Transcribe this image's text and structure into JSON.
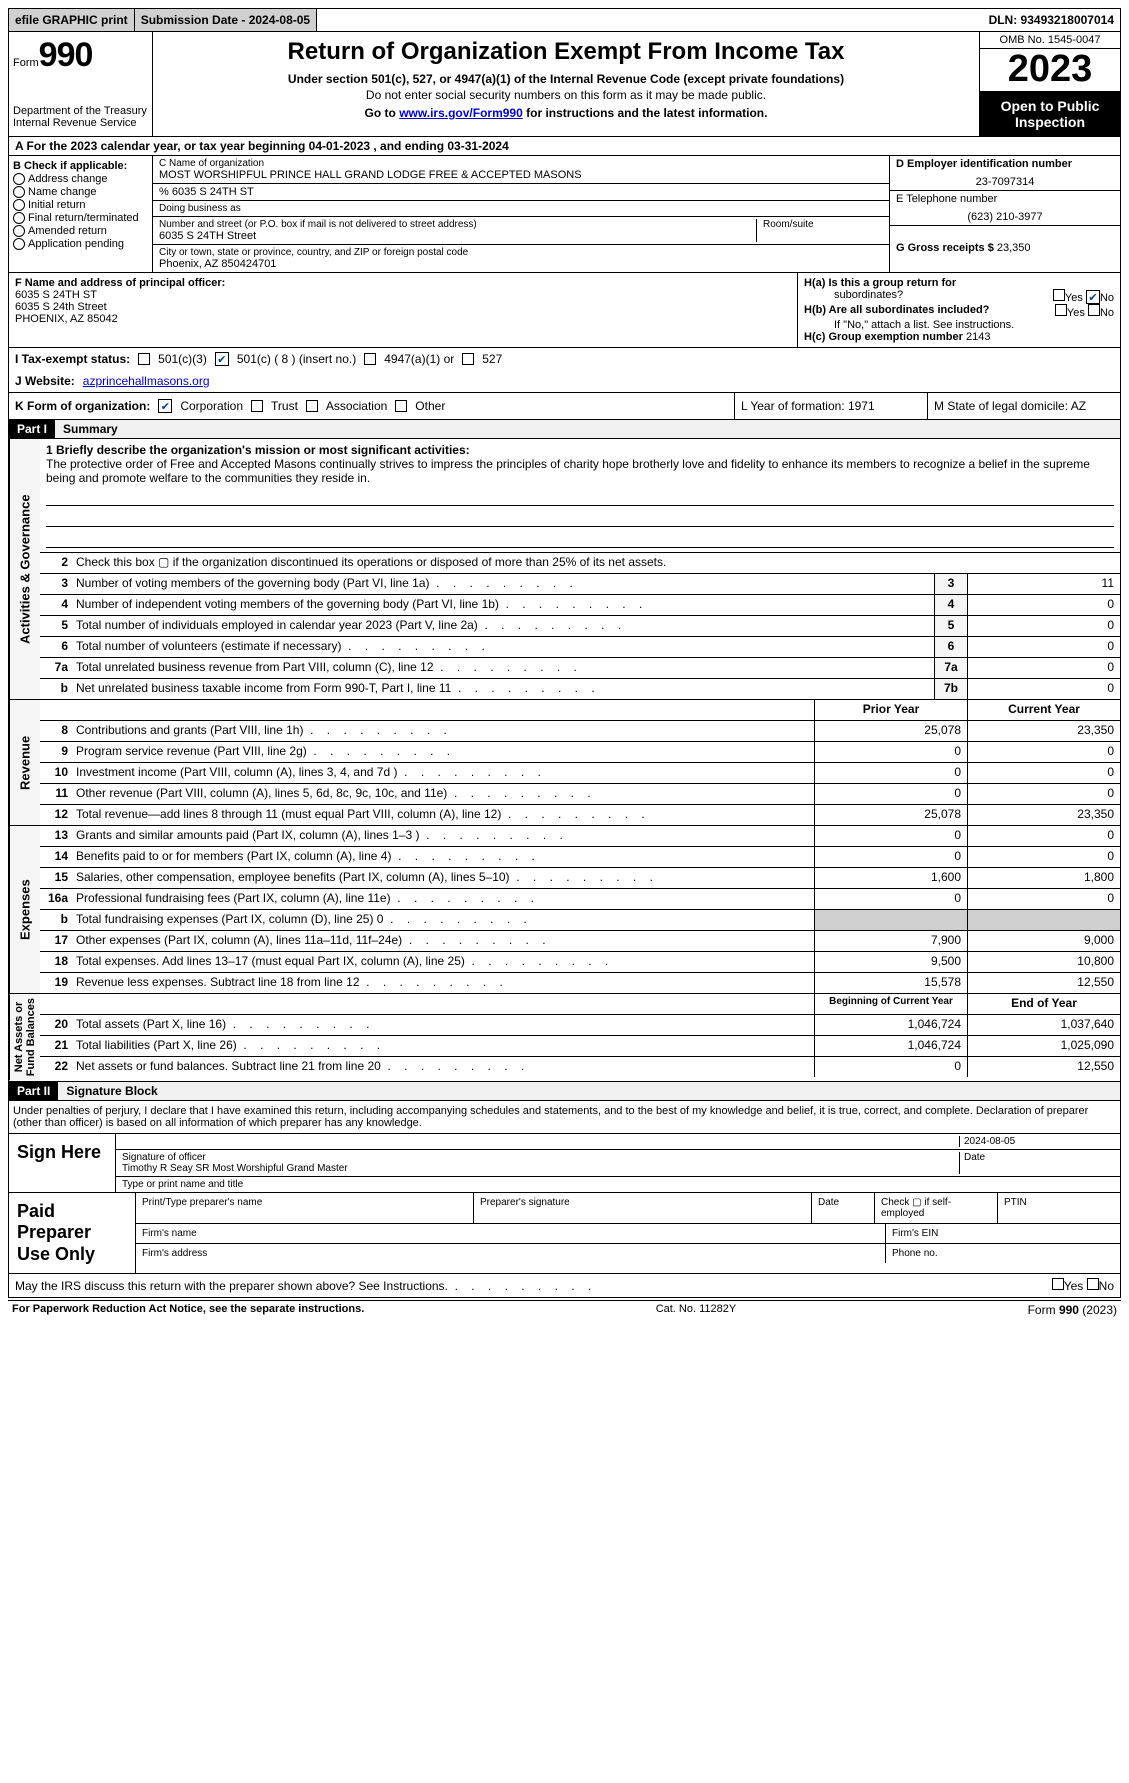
{
  "topbar": {
    "efile": "efile GRAPHIC print",
    "sub_label": "Submission Date - 2024-08-05",
    "dln": "DLN: 93493218007014"
  },
  "header": {
    "form_label": "Form",
    "form_num": "990",
    "dept": "Department of the Treasury\nInternal Revenue Service",
    "title": "Return of Organization Exempt From Income Tax",
    "subtitle": "Under section 501(c), 527, or 4947(a)(1) of the Internal Revenue Code (except private foundations)",
    "sub2": "Do not enter social security numbers on this form as it may be made public.",
    "sub3_pre": "Go to ",
    "sub3_link": "www.irs.gov/Form990",
    "sub3_post": " for instructions and the latest information.",
    "omb": "OMB No. 1545-0047",
    "year": "2023",
    "open": "Open to Public Inspection"
  },
  "line_a": "A For the 2023 calendar year, or tax year beginning 04-01-2023    , and ending 03-31-2024",
  "box_b": {
    "label": "B Check if applicable:",
    "opts": [
      "Address change",
      "Name change",
      "Initial return",
      "Final return/terminated",
      "Amended return",
      "Application pending"
    ]
  },
  "box_c": {
    "name_label": "C Name of organization",
    "name": "MOST WORSHIPFUL PRINCE HALL GRAND LODGE FREE & ACCEPTED MASONS",
    "care": "% 6035 S 24TH ST",
    "dba_label": "Doing business as",
    "addr_label": "Number and street (or P.O. box if mail is not delivered to street address)",
    "addr": "6035 S 24TH Street",
    "room_label": "Room/suite",
    "city_label": "City or town, state or province, country, and ZIP or foreign postal code",
    "city": "Phoenix, AZ  850424701"
  },
  "box_d": {
    "ein_label": "D Employer identification number",
    "ein": "23-7097314",
    "tel_label": "E Telephone number",
    "tel": "(623) 210-3977",
    "gross_label": "G Gross receipts $",
    "gross": "23,350"
  },
  "box_f": {
    "label": "F  Name and address of principal officer:",
    "l1": "6035 S 24TH ST",
    "l2": "6035 S 24th Street",
    "l3": "PHOENIX, AZ  85042"
  },
  "box_h": {
    "a": "H(a)  Is this a group return for",
    "a2": "subordinates?",
    "b": "H(b)  Are all subordinates included?",
    "b2": "If \"No,\" attach a list. See instructions.",
    "c": "H(c)  Group exemption number ",
    "c_val": "2143",
    "yes": "Yes",
    "no": "No"
  },
  "row_i": {
    "label": "I    Tax-exempt status:",
    "o1": "501(c)(3)",
    "o2": "501(c) ( 8 ) (insert no.)",
    "o3": "4947(a)(1) or",
    "o4": "527"
  },
  "row_j": {
    "label": "J   Website:",
    "val": "azprincehallmasons.org"
  },
  "row_k": {
    "label": "K Form of organization:",
    "o1": "Corporation",
    "o2": "Trust",
    "o3": "Association",
    "o4": "Other"
  },
  "row_lm": {
    "l": "L Year of formation: 1971",
    "m": "M State of legal domicile: AZ"
  },
  "part1": {
    "hdr": "Part I",
    "title": "Summary"
  },
  "mission": {
    "label": "1   Briefly describe the organization's mission or most significant activities:",
    "text": "The protective order of Free and Accepted Masons continually strives to impress the principles of charity hope brotherly love and fidelity to enhance its members to recognize a belief in the supreme being and promote welfare to the communities they reside in."
  },
  "gov_lines": [
    {
      "n": "2",
      "t": "Check this box ▢ if the organization discontinued its operations or disposed of more than 25% of its net assets.",
      "box": "",
      "v": ""
    },
    {
      "n": "3",
      "t": "Number of voting members of the governing body (Part VI, line 1a)",
      "box": "3",
      "v": "11"
    },
    {
      "n": "4",
      "t": "Number of independent voting members of the governing body (Part VI, line 1b)",
      "box": "4",
      "v": "0"
    },
    {
      "n": "5",
      "t": "Total number of individuals employed in calendar year 2023 (Part V, line 2a)",
      "box": "5",
      "v": "0"
    },
    {
      "n": "6",
      "t": "Total number of volunteers (estimate if necessary)",
      "box": "6",
      "v": "0"
    },
    {
      "n": "7a",
      "t": "Total unrelated business revenue from Part VIII, column (C), line 12",
      "box": "7a",
      "v": "0"
    },
    {
      "n": "b",
      "t": "Net unrelated business taxable income from Form 990-T, Part I, line 11",
      "box": "7b",
      "v": "0"
    }
  ],
  "rev_hdr": {
    "prior": "Prior Year",
    "curr": "Current Year"
  },
  "rev_lines": [
    {
      "n": "8",
      "t": "Contributions and grants (Part VIII, line 1h)",
      "p": "25,078",
      "c": "23,350"
    },
    {
      "n": "9",
      "t": "Program service revenue (Part VIII, line 2g)",
      "p": "0",
      "c": "0"
    },
    {
      "n": "10",
      "t": "Investment income (Part VIII, column (A), lines 3, 4, and 7d )",
      "p": "0",
      "c": "0"
    },
    {
      "n": "11",
      "t": "Other revenue (Part VIII, column (A), lines 5, 6d, 8c, 9c, 10c, and 11e)",
      "p": "0",
      "c": "0"
    },
    {
      "n": "12",
      "t": "Total revenue—add lines 8 through 11 (must equal Part VIII, column (A), line 12)",
      "p": "25,078",
      "c": "23,350"
    }
  ],
  "exp_lines": [
    {
      "n": "13",
      "t": "Grants and similar amounts paid (Part IX, column (A), lines 1–3 )",
      "p": "0",
      "c": "0"
    },
    {
      "n": "14",
      "t": "Benefits paid to or for members (Part IX, column (A), line 4)",
      "p": "0",
      "c": "0"
    },
    {
      "n": "15",
      "t": "Salaries, other compensation, employee benefits (Part IX, column (A), lines 5–10)",
      "p": "1,600",
      "c": "1,800"
    },
    {
      "n": "16a",
      "t": "Professional fundraising fees (Part IX, column (A), line 11e)",
      "p": "0",
      "c": "0"
    },
    {
      "n": "b",
      "t": "Total fundraising expenses (Part IX, column (D), line 25) 0",
      "p": "",
      "c": "",
      "shade": true
    },
    {
      "n": "17",
      "t": "Other expenses (Part IX, column (A), lines 11a–11d, 11f–24e)",
      "p": "7,900",
      "c": "9,000"
    },
    {
      "n": "18",
      "t": "Total expenses. Add lines 13–17 (must equal Part IX, column (A), line 25)",
      "p": "9,500",
      "c": "10,800"
    },
    {
      "n": "19",
      "t": "Revenue less expenses. Subtract line 18 from line 12",
      "p": "15,578",
      "c": "12,550"
    }
  ],
  "na_hdr": {
    "beg": "Beginning of Current Year",
    "end": "End of Year"
  },
  "na_lines": [
    {
      "n": "20",
      "t": "Total assets (Part X, line 16)",
      "p": "1,046,724",
      "c": "1,037,640"
    },
    {
      "n": "21",
      "t": "Total liabilities (Part X, line 26)",
      "p": "1,046,724",
      "c": "1,025,090"
    },
    {
      "n": "22",
      "t": "Net assets or fund balances. Subtract line 21 from line 20",
      "p": "0",
      "c": "12,550"
    }
  ],
  "vtabs": {
    "gov": "Activities & Governance",
    "rev": "Revenue",
    "exp": "Expenses",
    "na": "Net Assets or\nFund Balances"
  },
  "part2": {
    "hdr": "Part II",
    "title": "Signature Block"
  },
  "perjury": "Under penalties of perjury, I declare that I have examined this return, including accompanying schedules and statements, and to the best of my knowledge and belief, it is true, correct, and complete. Declaration of preparer (other than officer) is based on all information of which preparer has any knowledge.",
  "sign": {
    "here": "Sign Here",
    "date": "2024-08-05",
    "sig_label": "Signature of officer",
    "name": "Timothy R Seay SR  Most Worshipful Grand Master",
    "name_label": "Type or print name and title",
    "date_label": "Date"
  },
  "paid": {
    "label": "Paid Preparer Use Only",
    "c1": "Print/Type preparer's name",
    "c2": "Preparer's signature",
    "c3": "Date",
    "c4": "Check ▢ if self-employed",
    "c5": "PTIN",
    "f1": "Firm's name",
    "f2": "Firm's EIN",
    "a1": "Firm's address",
    "a2": "Phone no."
  },
  "discuss": "May the IRS discuss this return with the preparer shown above? See Instructions.",
  "footer": {
    "l": "For Paperwork Reduction Act Notice, see the separate instructions.",
    "m": "Cat. No. 11282Y",
    "r": "Form 990 (2023)"
  }
}
